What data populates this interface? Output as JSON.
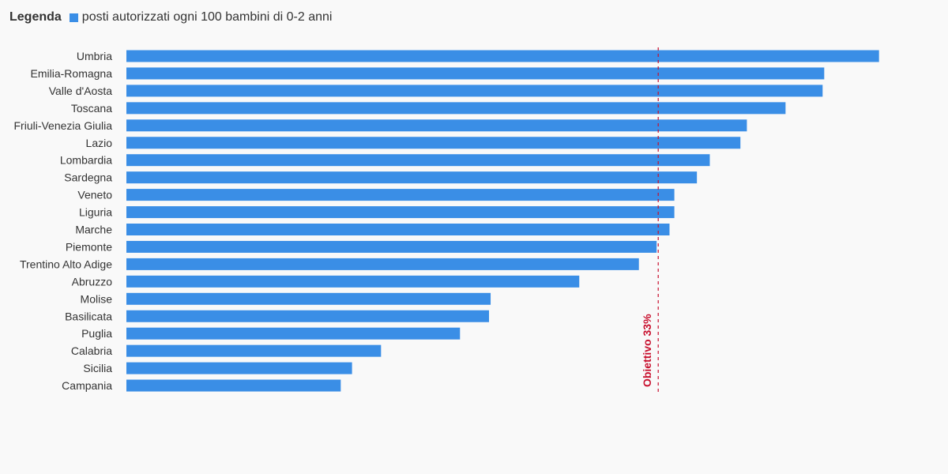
{
  "legend": {
    "title": "Legenda",
    "label": "posti autorizzati ogni 100 bambini di 0-2 anni"
  },
  "colors": {
    "bar": "#3a8ee6",
    "target": "#c8102e",
    "text": "#333333",
    "background": "#f9f9f9"
  },
  "chart_data": {
    "type": "bar",
    "orientation": "horizontal",
    "categories": [
      "Umbria",
      "Emilia-Romagna",
      "Valle d'Aosta",
      "Toscana",
      "Friuli-Venezia Giulia",
      "Lazio",
      "Lombardia",
      "Sardegna",
      "Veneto",
      "Liguria",
      "Marche",
      "Piemonte",
      "Trentino Alto Adige",
      "Abruzzo",
      "Molise",
      "Basilicata",
      "Puglia",
      "Calabria",
      "Sicilia",
      "Campania"
    ],
    "series": [
      {
        "name": "posti autorizzati ogni 100 bambini di 0-2 anni",
        "values": [
          46.7,
          43.3,
          43.2,
          40.9,
          38.5,
          38.1,
          36.2,
          35.4,
          34.0,
          34.0,
          33.7,
          32.9,
          31.8,
          28.1,
          22.6,
          22.5,
          20.7,
          15.8,
          14.0,
          13.3
        ]
      }
    ],
    "target": {
      "value": 33,
      "label": "Obiettivo 33%"
    },
    "xlim": [
      0,
      47
    ],
    "grid": false,
    "legend_position": "top-left"
  }
}
